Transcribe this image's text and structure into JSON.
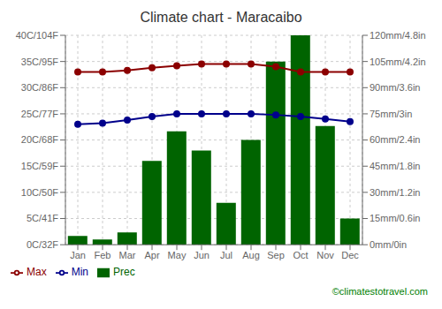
{
  "chart_data": {
    "type": "bar",
    "title": "Climate chart - Maracaibo",
    "categories": [
      "Jan",
      "Feb",
      "Mar",
      "Apr",
      "May",
      "Jun",
      "Jul",
      "Aug",
      "Sep",
      "Oct",
      "Nov",
      "Dec"
    ],
    "series": [
      {
        "name": "Prec",
        "type": "bar",
        "axis": "y2",
        "color": "#006400",
        "values": [
          5,
          3,
          7,
          48,
          65,
          54,
          24,
          60,
          105,
          120,
          68,
          15
        ]
      },
      {
        "name": "Min",
        "type": "line",
        "color": "#00008B",
        "marker": "circle",
        "values": [
          23,
          23.2,
          23.8,
          24.5,
          25,
          25,
          25,
          25,
          24.8,
          24.5,
          24,
          23.5
        ]
      },
      {
        "name": "Max",
        "type": "line",
        "color": "#8B0000",
        "marker": "circle",
        "values": [
          33,
          33,
          33.3,
          33.8,
          34.2,
          34.5,
          34.5,
          34.5,
          34,
          33,
          33,
          33
        ]
      }
    ],
    "ylim": [
      0,
      40
    ],
    "yticks": [
      {
        "value": 0,
        "label": "0C/32F"
      },
      {
        "value": 5,
        "label": "5C/41F"
      },
      {
        "value": 10,
        "label": "10C/50F"
      },
      {
        "value": 15,
        "label": "15C/59F"
      },
      {
        "value": 20,
        "label": "20C/68F"
      },
      {
        "value": 25,
        "label": "25C/77F"
      },
      {
        "value": 30,
        "label": "30C/86F"
      },
      {
        "value": 35,
        "label": "35C/95F"
      },
      {
        "value": 40,
        "label": "40C/104F"
      }
    ],
    "y2lim": [
      0,
      120
    ],
    "y2ticks": [
      {
        "value": 0,
        "label": "0mm/0in"
      },
      {
        "value": 15,
        "label": "15mm/0.6in"
      },
      {
        "value": 30,
        "label": "30mm/1.2in"
      },
      {
        "value": 45,
        "label": "45mm/1.8in"
      },
      {
        "value": 60,
        "label": "60mm/2.4in"
      },
      {
        "value": 75,
        "label": "75mm/3in"
      },
      {
        "value": 90,
        "label": "90mm/3.6in"
      },
      {
        "value": 105,
        "label": "105mm/4.2in"
      },
      {
        "value": 120,
        "label": "120mm/4.8in"
      }
    ],
    "grid": true,
    "legend": "bottom",
    "annotations": [
      "©climatestotravel.com"
    ]
  }
}
